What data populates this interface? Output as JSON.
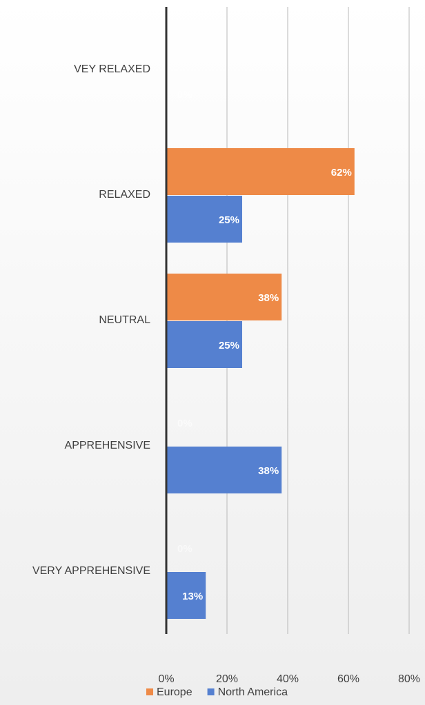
{
  "chart_data": {
    "type": "hbar",
    "categories": [
      "VEY RELAXED",
      "RELAXED",
      "NEUTRAL",
      "APPREHENSIVE",
      "VERY APPREHENSIVE"
    ],
    "series": [
      {
        "name": "Europe",
        "color": "#ee8a47",
        "values": [
          0,
          62,
          38,
          0,
          0
        ],
        "value_labels": [
          "0%",
          "62%",
          "38%",
          "0%",
          "0%"
        ]
      },
      {
        "name": "North America",
        "color": "#5580d0",
        "values": [
          0,
          25,
          25,
          38,
          13
        ],
        "value_labels": [
          "0%",
          "25%",
          "25%",
          "38%",
          "13%"
        ]
      }
    ],
    "xlim": [
      0,
      80
    ],
    "xticks": [
      {
        "value": 0,
        "label": "0%"
      },
      {
        "value": 20,
        "label": "20%"
      },
      {
        "value": 40,
        "label": "40%"
      },
      {
        "value": 60,
        "label": "60%"
      },
      {
        "value": 80,
        "label": "80%"
      }
    ],
    "grid": true,
    "legend": "bottom"
  }
}
